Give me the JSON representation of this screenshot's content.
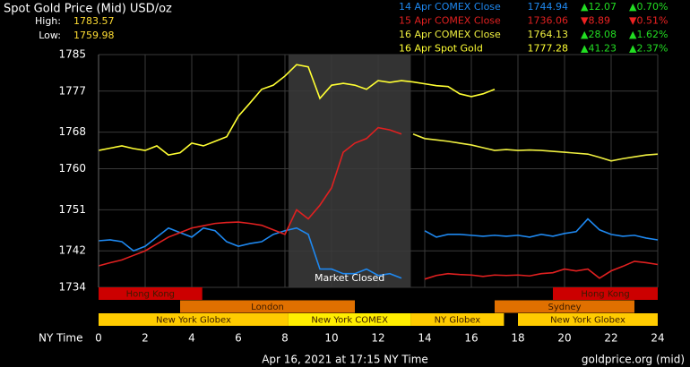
{
  "chart_data": {
    "type": "line",
    "title": "Spot Gold Price (Mid) USD/oz",
    "high_label": "High:",
    "high": "1783.57",
    "low_label": "Low:",
    "low": "1759.98",
    "x_label": "NY Time",
    "footer": "Apr 16, 2021 at 17:15 NY Time",
    "source": "goldprice.org (mid)",
    "xlim": [
      0,
      24
    ],
    "xticks": [
      0,
      2,
      4,
      6,
      8,
      10,
      12,
      14,
      16,
      18,
      20,
      22,
      24
    ],
    "ylim": [
      1734,
      1785
    ],
    "yticks": [
      1734,
      1742,
      1751,
      1760,
      1768,
      1777,
      1785
    ],
    "grid": true,
    "market_closed": {
      "label": "Market Closed",
      "range": [
        8.15,
        13.4
      ],
      "color": "#333333"
    },
    "x": [
      0,
      0.5,
      1,
      1.5,
      2,
      2.5,
      3,
      3.5,
      4,
      4.5,
      5,
      5.5,
      6,
      6.5,
      7,
      7.5,
      8,
      8.5,
      9,
      9.5,
      10,
      10.5,
      11,
      11.5,
      12,
      12.5,
      13,
      13.5,
      14,
      14.5,
      15,
      15.5,
      16,
      16.5,
      17,
      17.5,
      18,
      18.5,
      19,
      19.5,
      20,
      20.5,
      21,
      21.5,
      22,
      22.5,
      23,
      23.5,
      24
    ],
    "series": [
      {
        "name": "14 Apr COMEX Close",
        "color": "#1e88f0",
        "close": "1744.94",
        "change": "▲12.07",
        "change_pct": "▲0.70%",
        "up": true,
        "values": [
          1744.2,
          1744.4,
          1744,
          1742,
          1743,
          1745,
          1747,
          1746,
          1745,
          1747,
          1746.4,
          1744,
          1743,
          1743.6,
          1744,
          1745.6,
          1746.4,
          1747,
          1745.6,
          1738,
          1738,
          1737,
          1737,
          1738,
          1736.6,
          1737,
          1736,
          null,
          1746.4,
          1745,
          1745.6,
          1745.6,
          1745.4,
          1745.2,
          1745.4,
          1745.2,
          1745.4,
          1745,
          1745.6,
          1745.2,
          1745.8,
          1746.2,
          1749,
          1746.6,
          1745.6,
          1745.2,
          1745.4,
          1744.8,
          1744.4
        ]
      },
      {
        "name": "15 Apr COMEX Close",
        "color": "#e02020",
        "close": "1736.06",
        "change": "▼8.89",
        "change_pct": "▼0.51%",
        "up": false,
        "values": [
          1738.7,
          1739.4,
          1740,
          1741,
          1742,
          1743.5,
          1745,
          1746,
          1747,
          1747.5,
          1748,
          1748.2,
          1748.3,
          1748,
          1747.6,
          1746.6,
          1745.6,
          1751,
          1749,
          1752,
          1755.8,
          1763.6,
          1765.6,
          1766.6,
          1769,
          1768.5,
          1767.6,
          null,
          1735.8,
          1736.6,
          1737,
          1736.8,
          1736.7,
          1736.4,
          1736.7,
          1736.6,
          1736.7,
          1736.5,
          1737,
          1737.2,
          1738,
          1737.6,
          1738,
          1736,
          1737.6,
          1738.6,
          1739.7,
          1739.4,
          1739
        ]
      },
      {
        "name": "16 Apr COMEX Close",
        "color": "#f0f040",
        "close": "1764.13",
        "change": "▲28.08",
        "change_pct": "▲1.62%",
        "up": true,
        "values": [
          null,
          null,
          null,
          null,
          null,
          null,
          null,
          null,
          null,
          null,
          null,
          null,
          null,
          null,
          null,
          null,
          null,
          null,
          null,
          null,
          null,
          null,
          null,
          null,
          null,
          null,
          null,
          1767.6,
          1766.6,
          1766.3,
          1766,
          1765.6,
          1765.2,
          1764.6,
          1764,
          1764.2,
          1764,
          1764.1,
          1764,
          1763.8,
          1763.6,
          1763.4,
          1763.2,
          1762.5,
          1761.7,
          1762.2,
          1762.6,
          1763,
          1763.2
        ]
      },
      {
        "name": "16 Apr Spot Gold",
        "color": "#ffff33",
        "close": "1777.28",
        "change": "▲41.23",
        "change_pct": "▲2.37%",
        "up": true,
        "values": [
          1764,
          1764.5,
          1765,
          1764.4,
          1764,
          1765,
          1763,
          1763.5,
          1765.6,
          1765,
          1766,
          1767,
          1771.5,
          1774.4,
          1777.4,
          1778.3,
          1780.3,
          1782.8,
          1782.3,
          1775.4,
          1778.3,
          1778.7,
          1778.3,
          1777.4,
          1779.3,
          1778.9,
          1779.3,
          1779,
          1778.6,
          1778.2,
          1778,
          1776.4,
          1775.8,
          1776.4,
          1777.4,
          null,
          null,
          null,
          null,
          null,
          null,
          null,
          null,
          null,
          null,
          null,
          null,
          null,
          null
        ]
      }
    ],
    "session_rows": [
      [
        {
          "name": "Hong Kong",
          "color": "#cc0000",
          "spans": [
            [
              0,
              4.45
            ],
            [
              19.5,
              24
            ]
          ]
        }
      ],
      [
        {
          "name": "London",
          "color": "#e07000",
          "spans": [
            [
              3.5,
              11
            ]
          ]
        },
        {
          "name": "Sydney",
          "color": "#e07000",
          "spans": [
            [
              17,
              23
            ]
          ]
        }
      ],
      [
        {
          "name": "New York Globex",
          "color": "#ffcc00",
          "spans": [
            [
              0,
              8.15
            ],
            [
              18,
              24
            ]
          ]
        },
        {
          "name": "New York COMEX",
          "color": "#ffee00",
          "spans": [
            [
              8.15,
              13.4
            ]
          ]
        },
        {
          "name": "NY Globex",
          "color": "#ffcc00",
          "spans": [
            [
              13.4,
              17.4
            ]
          ]
        }
      ]
    ]
  }
}
